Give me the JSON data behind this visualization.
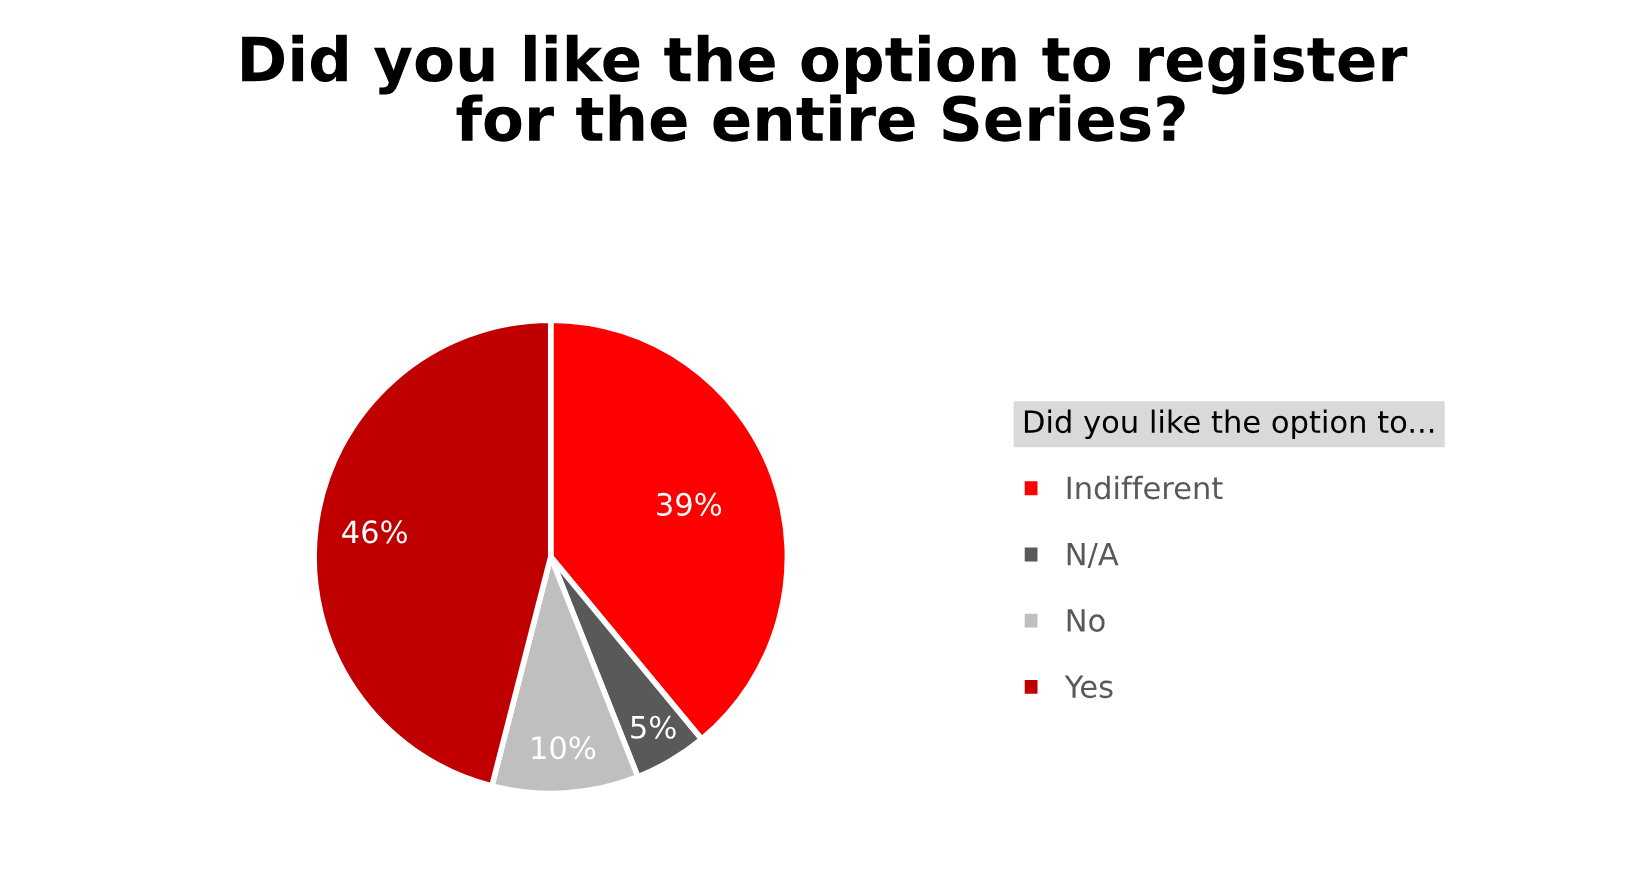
{
  "chart_data": {
    "type": "pie",
    "title": "Did you like the option to register\nfor the entire Series?",
    "legend_title": "Did you like the option to...",
    "categories": [
      "Indifferent",
      "N/A",
      "No",
      "Yes"
    ],
    "values": [
      39,
      5,
      10,
      46
    ],
    "value_labels": [
      "39%",
      "5%",
      "10%",
      "46%"
    ],
    "colors": [
      "#ff0000",
      "#595959",
      "#bfbfbf",
      "#c00000"
    ],
    "legend": "right"
  }
}
